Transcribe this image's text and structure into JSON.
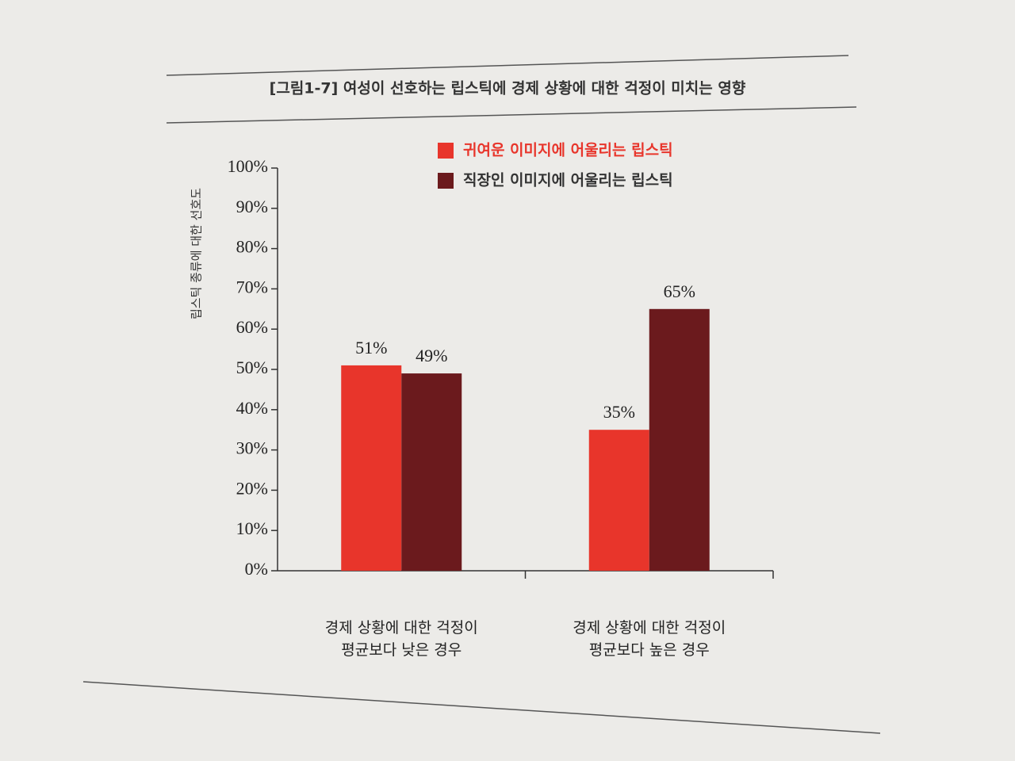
{
  "chart_data": {
    "type": "bar",
    "title": "[그림1-7] 여성이 선호하는 립스틱에 경제 상황에 대한 걱정이 미치는 영향",
    "y_label": "립스틱 종류에 대한 선호도",
    "categories": [
      "경제 상황에 대한 걱정이\n평균보다 낮은 경우",
      "경제 상황에 대한 걱정이\n평균보다 높은 경우"
    ],
    "series": [
      {
        "name": "귀여운 이미지에 어울리는 립스틱",
        "color": "#e8352b",
        "values": [
          51,
          35
        ],
        "value_labels": [
          "51%",
          "35%"
        ]
      },
      {
        "name": "직장인 이미지에 어울리는 립스틱",
        "color": "#6b1a1d",
        "values": [
          49,
          65
        ],
        "value_labels": [
          "49%",
          "65%"
        ]
      }
    ],
    "ylim": [
      0,
      100
    ],
    "yticks": [
      {
        "value": 0,
        "label": "0%"
      },
      {
        "value": 10,
        "label": "10%"
      },
      {
        "value": 20,
        "label": "20%"
      },
      {
        "value": 30,
        "label": "30%"
      },
      {
        "value": 40,
        "label": "40%"
      },
      {
        "value": 50,
        "label": "50%"
      },
      {
        "value": 60,
        "label": "60%"
      },
      {
        "value": 70,
        "label": "70%"
      },
      {
        "value": 80,
        "label": "80%"
      },
      {
        "value": 90,
        "label": "90%"
      },
      {
        "value": 100,
        "label": "100%"
      }
    ],
    "legend": "upper-right"
  }
}
